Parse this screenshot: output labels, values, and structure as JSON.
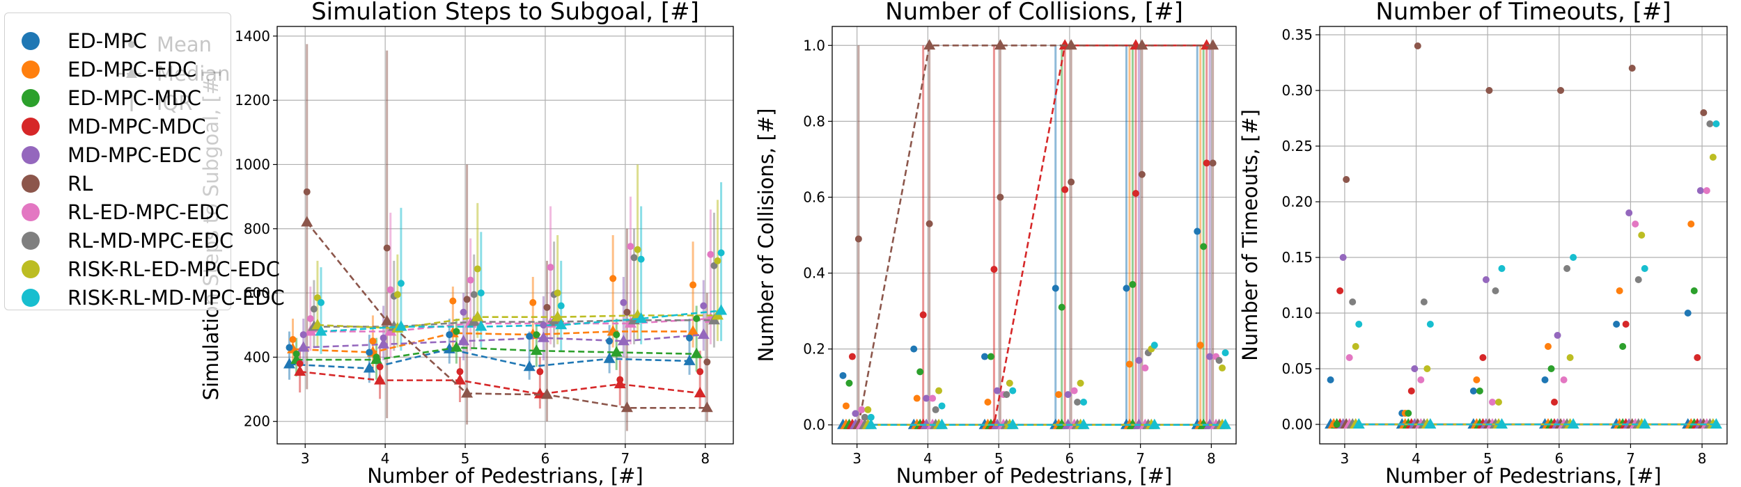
{
  "series_colors": [
    "#1f77b4",
    "#ff7f0e",
    "#2ca02c",
    "#d62728",
    "#9467bd",
    "#8c564b",
    "#e377c2",
    "#7f7f7f",
    "#bcbd22",
    "#17becf"
  ],
  "legend": {
    "items": [
      "ED-MPC",
      "ED-MPC-EDC",
      "ED-MPC-MDC",
      "MD-MPC-MDC",
      "MD-MPC-EDC",
      "RL",
      "RL-ED-MPC-EDC",
      "RL-MD-MPC-EDC",
      "RISK-RL-ED-MPC-EDC",
      "RISK-RL-MD-MPC-EDC"
    ],
    "stats": [
      "Mean",
      "Median",
      "IQR"
    ]
  },
  "chart_data": [
    {
      "type": "scatter",
      "title": "Simulation Steps to Subgoal, [#]",
      "xlabel": "Number of Pedestrians, [#]",
      "ylabel": "Simulation Steps to Subgoal, [#]",
      "xlim": [
        2.65,
        8.35
      ],
      "ylim": [
        130,
        1430
      ],
      "xticks": [
        3,
        4,
        5,
        6,
        7,
        8
      ],
      "yticks": [
        200,
        400,
        600,
        800,
        1000,
        1200,
        1400
      ],
      "grid": true,
      "x": [
        3,
        4,
        5,
        6,
        7,
        8
      ],
      "series": [
        {
          "name": "ED-MPC",
          "mean": [
            430,
            415,
            470,
            465,
            450,
            460
          ],
          "median": [
            378,
            365,
            425,
            370,
            395,
            388
          ],
          "iqr_low": [
            330,
            320,
            380,
            330,
            350,
            345
          ],
          "iqr_high": [
            480,
            470,
            520,
            480,
            500,
            520
          ]
        },
        {
          "name": "ED-MPC-EDC",
          "mean": [
            455,
            450,
            575,
            570,
            645,
            625
          ],
          "median": [
            425,
            415,
            475,
            470,
            480,
            480
          ],
          "iqr_low": [
            380,
            360,
            420,
            420,
            430,
            430
          ],
          "iqr_high": [
            520,
            530,
            620,
            650,
            780,
            760
          ]
        },
        {
          "name": "ED-MPC-MDC",
          "mean": [
            410,
            400,
            480,
            470,
            470,
            520
          ],
          "median": [
            392,
            392,
            430,
            420,
            415,
            410
          ],
          "iqr_low": [
            340,
            330,
            380,
            370,
            360,
            355
          ],
          "iqr_high": [
            460,
            460,
            520,
            510,
            520,
            560
          ]
        },
        {
          "name": "MD-MPC-MDC",
          "mean": [
            380,
            370,
            355,
            355,
            330,
            355
          ],
          "median": [
            355,
            328,
            328,
            285,
            316,
            288
          ],
          "iqr_low": [
            290,
            270,
            260,
            240,
            250,
            240
          ],
          "iqr_high": [
            430,
            430,
            400,
            400,
            390,
            420
          ]
        },
        {
          "name": "MD-MPC-EDC",
          "mean": [
            470,
            460,
            540,
            500,
            570,
            560
          ],
          "median": [
            430,
            440,
            450,
            460,
            450,
            470
          ],
          "iqr_low": [
            380,
            390,
            390,
            390,
            400,
            420
          ],
          "iqr_high": [
            520,
            560,
            600,
            590,
            650,
            640
          ]
        },
        {
          "name": "RL",
          "mean": [
            915,
            740,
            580,
            555,
            540,
            385
          ],
          "median": [
            820,
            512,
            287,
            283,
            242,
            242
          ],
          "iqr_low": [
            300,
            210,
            190,
            200,
            170,
            200
          ],
          "iqr_high": [
            1375,
            1355,
            1000,
            700,
            800,
            600
          ]
        },
        {
          "name": "RL-ED-MPC-EDC",
          "mean": [
            520,
            610,
            640,
            680,
            745,
            720
          ],
          "median": [
            480,
            480,
            505,
            505,
            505,
            520
          ],
          "iqr_low": [
            420,
            400,
            420,
            440,
            440,
            440
          ],
          "iqr_high": [
            620,
            850,
            770,
            870,
            900,
            860
          ]
        },
        {
          "name": "RL-MD-MPC-EDC",
          "mean": [
            550,
            590,
            595,
            595,
            710,
            685
          ],
          "median": [
            495,
            495,
            510,
            510,
            515,
            515
          ],
          "iqr_low": [
            430,
            420,
            430,
            430,
            440,
            430
          ],
          "iqr_high": [
            640,
            700,
            720,
            760,
            800,
            850
          ]
        },
        {
          "name": "RISK-RL-ED-MPC-EDC",
          "mean": [
            585,
            595,
            675,
            600,
            735,
            700
          ],
          "median": [
            500,
            490,
            525,
            525,
            530,
            530
          ],
          "iqr_low": [
            430,
            430,
            460,
            440,
            450,
            450
          ],
          "iqr_high": [
            700,
            720,
            880,
            780,
            1000,
            890
          ]
        },
        {
          "name": "RISK-RL-MD-MPC-EDC",
          "mean": [
            570,
            630,
            600,
            560,
            705,
            725
          ],
          "median": [
            480,
            495,
            495,
            500,
            520,
            545
          ],
          "iqr_low": [
            410,
            420,
            430,
            420,
            440,
            450
          ],
          "iqr_high": [
            680,
            865,
            790,
            700,
            870,
            945
          ]
        }
      ]
    },
    {
      "type": "scatter",
      "title": "Number of Collisions, [#]",
      "xlabel": "Number of Pedestrians, [#]",
      "ylabel": "Number of Collisions, [#]",
      "xlim": [
        2.65,
        8.35
      ],
      "ylim": [
        -0.05,
        1.05
      ],
      "xticks": [
        3,
        4,
        5,
        6,
        7,
        8
      ],
      "yticks": [
        0.0,
        0.2,
        0.4,
        0.6,
        0.8,
        1.0
      ],
      "grid": true,
      "x": [
        3,
        4,
        5,
        6,
        7,
        8
      ],
      "series": [
        {
          "name": "ED-MPC",
          "mean": [
            0.13,
            0.2,
            0.18,
            0.36,
            0.36,
            0.51
          ],
          "median": [
            0,
            0,
            0,
            0,
            0,
            0
          ],
          "iqr_low": [
            0,
            0,
            0,
            0,
            0,
            0
          ],
          "iqr_high": [
            0,
            0,
            0,
            1,
            1,
            1
          ]
        },
        {
          "name": "ED-MPC-EDC",
          "mean": [
            0.05,
            0.07,
            0.06,
            0.08,
            0.16,
            0.21
          ],
          "median": [
            0,
            0,
            0,
            0,
            0,
            0
          ],
          "iqr_low": [
            0,
            0,
            0,
            0,
            0,
            0
          ],
          "iqr_high": [
            0,
            0,
            0,
            0,
            1,
            1
          ]
        },
        {
          "name": "ED-MPC-MDC",
          "mean": [
            0.11,
            0.14,
            0.18,
            0.31,
            0.37,
            0.47
          ],
          "median": [
            0,
            0,
            0,
            0,
            0,
            0
          ],
          "iqr_low": [
            0,
            0,
            0,
            0,
            0,
            0
          ],
          "iqr_high": [
            0,
            0,
            0,
            1,
            1,
            1
          ]
        },
        {
          "name": "MD-MPC-MDC",
          "mean": [
            0.18,
            0.29,
            0.41,
            0.62,
            0.61,
            0.69
          ],
          "median": [
            0,
            0,
            0,
            1,
            1,
            1
          ],
          "iqr_low": [
            0,
            0,
            0,
            0,
            0,
            0
          ],
          "iqr_high": [
            0,
            1,
            1,
            1,
            1,
            1
          ]
        },
        {
          "name": "MD-MPC-EDC",
          "mean": [
            0.03,
            0.07,
            0.09,
            0.08,
            0.17,
            0.18
          ],
          "median": [
            0,
            0,
            0,
            0,
            0,
            0
          ],
          "iqr_low": [
            0,
            0,
            0,
            0,
            0,
            0
          ],
          "iqr_high": [
            0,
            0,
            0,
            0,
            1,
            1
          ]
        },
        {
          "name": "RL",
          "mean": [
            0.49,
            0.53,
            0.6,
            0.64,
            0.66,
            0.69
          ],
          "median": [
            0,
            1,
            1,
            1,
            1,
            1
          ],
          "iqr_low": [
            0,
            0,
            0,
            0,
            0,
            0
          ],
          "iqr_high": [
            1,
            1,
            1,
            1,
            1,
            1
          ]
        },
        {
          "name": "RL-ED-MPC-EDC",
          "mean": [
            0.04,
            0.07,
            0.08,
            0.09,
            0.15,
            0.18
          ],
          "median": [
            0,
            0,
            0,
            0,
            0,
            0
          ],
          "iqr_low": [
            0,
            0,
            0,
            0,
            0,
            0
          ],
          "iqr_high": [
            0,
            0,
            0,
            0,
            0,
            0
          ]
        },
        {
          "name": "RL-MD-MPC-EDC",
          "mean": [
            0.02,
            0.04,
            0.08,
            0.06,
            0.19,
            0.17
          ],
          "median": [
            0,
            0,
            0,
            0,
            0,
            0
          ],
          "iqr_low": [
            0,
            0,
            0,
            0,
            0,
            0
          ],
          "iqr_high": [
            0,
            0,
            0,
            0,
            0,
            0
          ]
        },
        {
          "name": "RISK-RL-ED-MPC-EDC",
          "mean": [
            0.04,
            0.09,
            0.11,
            0.11,
            0.2,
            0.15
          ],
          "median": [
            0,
            0,
            0,
            0,
            0,
            0
          ],
          "iqr_low": [
            0,
            0,
            0,
            0,
            0,
            0
          ],
          "iqr_high": [
            0,
            0,
            0,
            0,
            0,
            0
          ]
        },
        {
          "name": "RISK-RL-MD-MPC-EDC",
          "mean": [
            0.02,
            0.05,
            0.09,
            0.06,
            0.21,
            0.19
          ],
          "median": [
            0,
            0,
            0,
            0,
            0,
            0
          ],
          "iqr_low": [
            0,
            0,
            0,
            0,
            0,
            0
          ],
          "iqr_high": [
            0,
            0,
            0,
            0,
            0,
            0
          ]
        }
      ]
    },
    {
      "type": "scatter",
      "title": "Number of Timeouts, [#]",
      "xlabel": "Number of Pedestrians, [#]",
      "ylabel": "Number of Timeouts, [#]",
      "xlim": [
        2.65,
        8.35
      ],
      "ylim": [
        -0.0175,
        0.3575
      ],
      "xticks": [
        3,
        4,
        5,
        6,
        7,
        8
      ],
      "yticks": [
        0.0,
        0.05,
        0.1,
        0.15,
        0.2,
        0.25,
        0.3,
        0.35
      ],
      "grid": true,
      "x": [
        3,
        4,
        5,
        6,
        7,
        8
      ],
      "series": [
        {
          "name": "ED-MPC",
          "mean": [
            0.04,
            0.01,
            0.03,
            0.04,
            0.09,
            0.1
          ],
          "median": [
            0,
            0,
            0,
            0,
            0,
            0
          ],
          "iqr_low": [
            0,
            0,
            0,
            0,
            0,
            0
          ],
          "iqr_high": [
            0,
            0,
            0,
            0,
            0,
            0
          ]
        },
        {
          "name": "ED-MPC-EDC",
          "mean": [
            0.0,
            0.01,
            0.04,
            0.07,
            0.12,
            0.18
          ],
          "median": [
            0,
            0,
            0,
            0,
            0,
            0
          ],
          "iqr_low": [
            0,
            0,
            0,
            0,
            0,
            0
          ],
          "iqr_high": [
            0,
            0,
            0,
            0,
            0,
            0
          ]
        },
        {
          "name": "ED-MPC-MDC",
          "mean": [
            0.0,
            0.01,
            0.03,
            0.05,
            0.07,
            0.12
          ],
          "median": [
            0,
            0,
            0,
            0,
            0,
            0
          ],
          "iqr_low": [
            0,
            0,
            0,
            0,
            0,
            0
          ],
          "iqr_high": [
            0,
            0,
            0,
            0,
            0,
            0
          ]
        },
        {
          "name": "MD-MPC-MDC",
          "mean": [
            0.12,
            0.03,
            0.06,
            0.02,
            0.09,
            0.06
          ],
          "median": [
            0,
            0,
            0,
            0,
            0,
            0
          ],
          "iqr_low": [
            0,
            0,
            0,
            0,
            0,
            0
          ],
          "iqr_high": [
            0,
            0,
            0,
            0,
            0,
            0
          ]
        },
        {
          "name": "MD-MPC-EDC",
          "mean": [
            0.15,
            0.05,
            0.13,
            0.08,
            0.19,
            0.21
          ],
          "median": [
            0,
            0,
            0,
            0,
            0,
            0
          ],
          "iqr_low": [
            0,
            0,
            0,
            0,
            0,
            0
          ],
          "iqr_high": [
            0,
            0,
            0,
            0,
            0,
            0
          ]
        },
        {
          "name": "RL",
          "mean": [
            0.22,
            0.34,
            0.3,
            0.3,
            0.32,
            0.28
          ],
          "median": [
            0,
            0,
            0,
            0,
            0,
            0
          ],
          "iqr_low": [
            0,
            0,
            0,
            0,
            0,
            0
          ],
          "iqr_high": [
            0,
            0,
            0,
            0,
            0,
            0
          ]
        },
        {
          "name": "RL-ED-MPC-EDC",
          "mean": [
            0.06,
            0.04,
            0.02,
            0.04,
            0.18,
            0.21
          ],
          "median": [
            0,
            0,
            0,
            0,
            0,
            0
          ],
          "iqr_low": [
            0,
            0,
            0,
            0,
            0,
            0
          ],
          "iqr_high": [
            0,
            0,
            0,
            0,
            0,
            0
          ]
        },
        {
          "name": "RL-MD-MPC-EDC",
          "mean": [
            0.11,
            0.11,
            0.12,
            0.14,
            0.13,
            0.27
          ],
          "median": [
            0,
            0,
            0,
            0,
            0,
            0
          ],
          "iqr_low": [
            0,
            0,
            0,
            0,
            0,
            0
          ],
          "iqr_high": [
            0,
            0,
            0,
            0,
            0,
            0
          ]
        },
        {
          "name": "RISK-RL-ED-MPC-EDC",
          "mean": [
            0.07,
            0.05,
            0.02,
            0.06,
            0.17,
            0.24
          ],
          "median": [
            0,
            0,
            0,
            0,
            0,
            0
          ],
          "iqr_low": [
            0,
            0,
            0,
            0,
            0,
            0
          ],
          "iqr_high": [
            0,
            0,
            0,
            0,
            0,
            0
          ]
        },
        {
          "name": "RISK-RL-MD-MPC-EDC",
          "mean": [
            0.09,
            0.09,
            0.14,
            0.15,
            0.14,
            0.27
          ],
          "median": [
            0,
            0,
            0,
            0,
            0,
            0
          ],
          "iqr_low": [
            0,
            0,
            0,
            0,
            0,
            0
          ],
          "iqr_high": [
            0,
            0,
            0,
            0,
            0,
            0
          ]
        }
      ]
    }
  ]
}
